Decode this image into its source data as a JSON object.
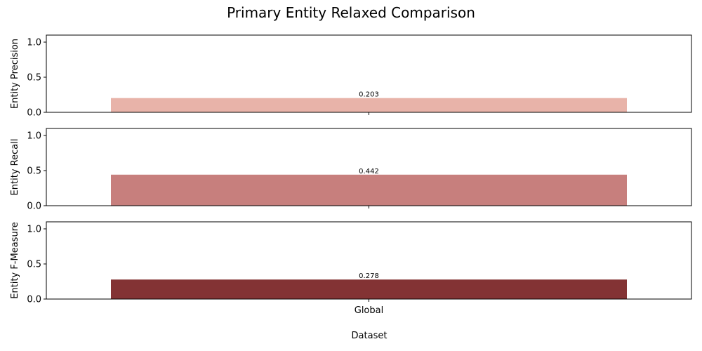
{
  "chart_data": {
    "type": "bar",
    "title": "Primary Entity Relaxed Comparison",
    "xlabel": "Dataset",
    "categories": [
      "Global"
    ],
    "subplots": [
      {
        "ylabel": "Entity Precision",
        "values": [
          0.203
        ],
        "value_labels": [
          "0.203"
        ],
        "color": "#e8b3a9",
        "ylim": [
          0,
          1.1
        ],
        "yticks": [
          "0.0",
          "0.5",
          "1.0"
        ]
      },
      {
        "ylabel": "Entity Recall",
        "values": [
          0.442
        ],
        "value_labels": [
          "0.442"
        ],
        "color": "#c77f7d",
        "ylim": [
          0,
          1.1
        ],
        "yticks": [
          "0.0",
          "0.5",
          "1.0"
        ]
      },
      {
        "ylabel": "Entity F-Measure",
        "values": [
          0.278
        ],
        "value_labels": [
          "0.278"
        ],
        "color": "#833334",
        "ylim": [
          0,
          1.1
        ],
        "yticks": [
          "0.0",
          "0.5",
          "1.0"
        ]
      }
    ],
    "grid": false,
    "legend": "none"
  }
}
